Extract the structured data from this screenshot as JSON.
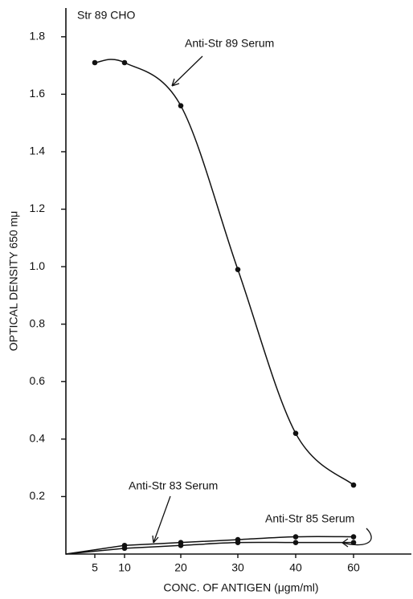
{
  "chart_data": {
    "type": "line",
    "title": "Str 89 CHO",
    "x_label": "CONC. OF ANTIGEN (μgm/ml)",
    "y_label": "OPTICAL DENSITY 650 mμ",
    "ylim": [
      0,
      1.9
    ],
    "yticks": [
      0.2,
      0.4,
      0.6,
      0.8,
      {
        "value": 1,
        "label": "1.0"
      },
      1.2,
      1.4,
      1.6,
      1.8
    ],
    "xticks": [
      5,
      10,
      20,
      30,
      40,
      60
    ],
    "series": [
      {
        "name": "Anti-Str 89 Serum",
        "color": "#111",
        "x": [
          5,
          10,
          20,
          30,
          40,
          60
        ],
        "values": [
          1.71,
          1.71,
          1.56,
          0.99,
          0.42,
          0.24
        ]
      },
      {
        "name": "Anti-Str 83 Serum",
        "color": "#111",
        "x": [
          10,
          20,
          30,
          40,
          60
        ],
        "values": [
          0.03,
          0.04,
          0.05,
          0.06,
          0.06
        ]
      },
      {
        "name": "Anti-Str 85 Serum",
        "color": "#111",
        "x": [
          10,
          20,
          30,
          40,
          60
        ],
        "values": [
          0.02,
          0.03,
          0.04,
          0.04,
          0.04
        ]
      }
    ]
  }
}
